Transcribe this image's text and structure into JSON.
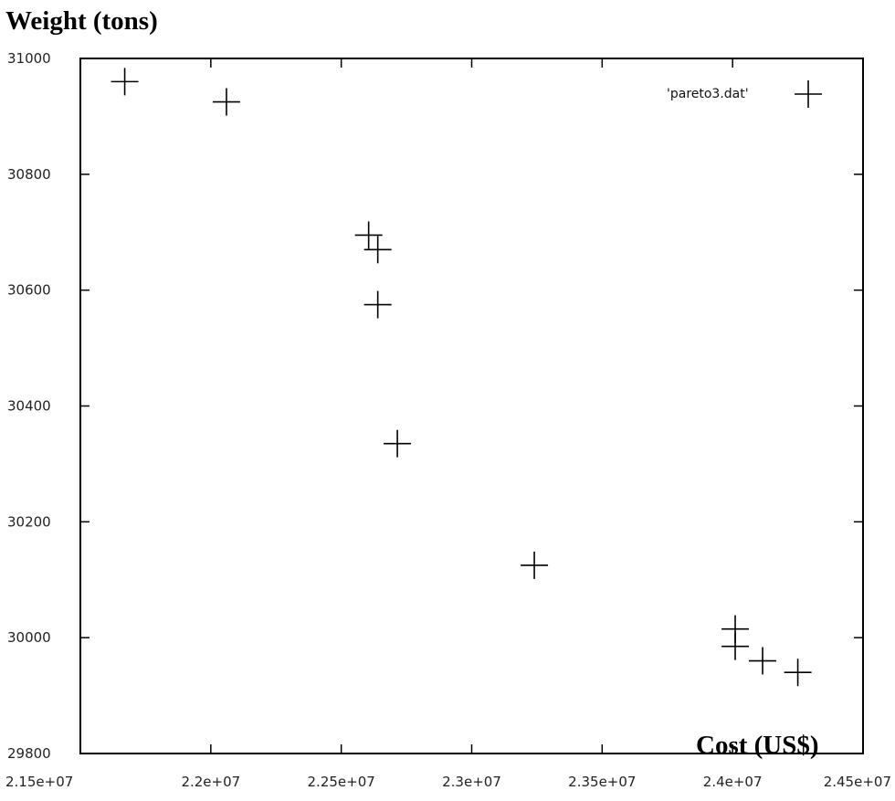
{
  "chart_data": {
    "type": "scatter",
    "ylabel": "Weight (tons)",
    "xlabel": "Cost (US$)",
    "xlim": [
      21500000,
      24500000
    ],
    "ylim": [
      29800,
      31000
    ],
    "xticks": [
      "2.15e+07",
      "2.2e+07",
      "2.25e+07",
      "2.3e+07",
      "2.35e+07",
      "2.4e+07",
      "2.45e+07"
    ],
    "xtick_values": [
      21500000,
      22000000,
      22500000,
      23000000,
      23500000,
      24000000,
      24500000
    ],
    "yticks": [
      "29800",
      "30000",
      "30200",
      "30400",
      "30600",
      "30800",
      "31000"
    ],
    "ytick_values": [
      29800,
      30000,
      30200,
      30400,
      30600,
      30800,
      31000
    ],
    "grid": false,
    "legend": {
      "position": "top-right",
      "entries": [
        "'pareto3.dat'"
      ]
    },
    "series": [
      {
        "name": "'pareto3.dat'",
        "marker": "plus",
        "points": [
          [
            21670000,
            30960
          ],
          [
            22060000,
            30925
          ],
          [
            22605000,
            30695
          ],
          [
            22640000,
            30670
          ],
          [
            22640000,
            30575
          ],
          [
            22715000,
            30335
          ],
          [
            23240000,
            30125
          ],
          [
            24010000,
            30015
          ],
          [
            24010000,
            29985
          ],
          [
            24115000,
            29960
          ],
          [
            24250000,
            29940
          ]
        ]
      }
    ]
  }
}
